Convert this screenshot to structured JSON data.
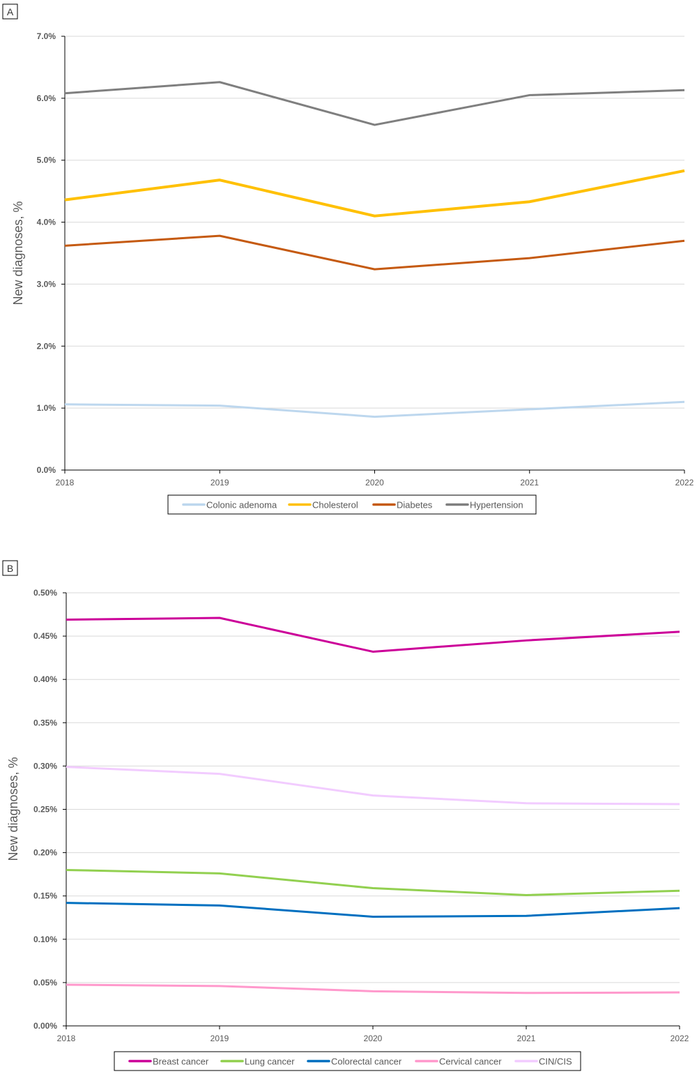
{
  "chart_data": [
    {
      "panel_label": "A",
      "type": "line",
      "ylabel": "New diagnoses, %",
      "xlabel": "",
      "categories": [
        "2018",
        "2019",
        "2020",
        "2021",
        "2022"
      ],
      "ylim": [
        0,
        7
      ],
      "yticks": [
        0,
        1,
        2,
        3,
        4,
        5,
        6,
        7
      ],
      "ytick_labels": [
        "0.0%",
        "1.0%",
        "2.0%",
        "3.0%",
        "4.0%",
        "5.0%",
        "6.0%",
        "7.0%"
      ],
      "grid": true,
      "legend_position": "bottom",
      "series": [
        {
          "name": "Colonic adenoma",
          "color": "#BDD7EE",
          "values": [
            1.06,
            1.04,
            0.86,
            0.98,
            1.1
          ]
        },
        {
          "name": "Cholesterol",
          "color": "#FFC000",
          "values": [
            4.36,
            4.68,
            4.1,
            4.33,
            4.83
          ]
        },
        {
          "name": "Diabetes",
          "color": "#C55A11",
          "values": [
            3.62,
            3.78,
            3.24,
            3.42,
            3.7
          ]
        },
        {
          "name": "Hypertension",
          "color": "#7F7F7F",
          "values": [
            6.08,
            6.26,
            5.57,
            6.05,
            6.13
          ]
        }
      ]
    },
    {
      "panel_label": "B",
      "type": "line",
      "ylabel": "New diagnoses, %",
      "xlabel": "",
      "categories": [
        "2018",
        "2019",
        "2020",
        "2021",
        "2022"
      ],
      "ylim": [
        0,
        0.5
      ],
      "yticks": [
        0,
        0.05,
        0.1,
        0.15,
        0.2,
        0.25,
        0.3,
        0.35,
        0.4,
        0.45,
        0.5
      ],
      "ytick_labels": [
        "0.00%",
        "0.05%",
        "0.10%",
        "0.15%",
        "0.20%",
        "0.25%",
        "0.30%",
        "0.35%",
        "0.40%",
        "0.45%",
        "0.50%"
      ],
      "grid": true,
      "legend_position": "bottom",
      "series": [
        {
          "name": "Breast cancer",
          "color": "#CC0099",
          "values": [
            0.469,
            0.471,
            0.432,
            0.445,
            0.455
          ]
        },
        {
          "name": "Lung cancer",
          "color": "#92D050",
          "values": [
            0.18,
            0.176,
            0.159,
            0.151,
            0.156
          ]
        },
        {
          "name": "Colorectal cancer",
          "color": "#0070C0",
          "values": [
            0.142,
            0.139,
            0.126,
            0.127,
            0.136
          ]
        },
        {
          "name": "Cervical cancer",
          "color": "#FF99CC",
          "values": [
            0.0475,
            0.046,
            0.04,
            0.038,
            0.0386
          ]
        },
        {
          "name": "CIN/CIS",
          "color": "#F2CCFF",
          "values": [
            0.299,
            0.291,
            0.266,
            0.257,
            0.256
          ]
        }
      ]
    }
  ]
}
